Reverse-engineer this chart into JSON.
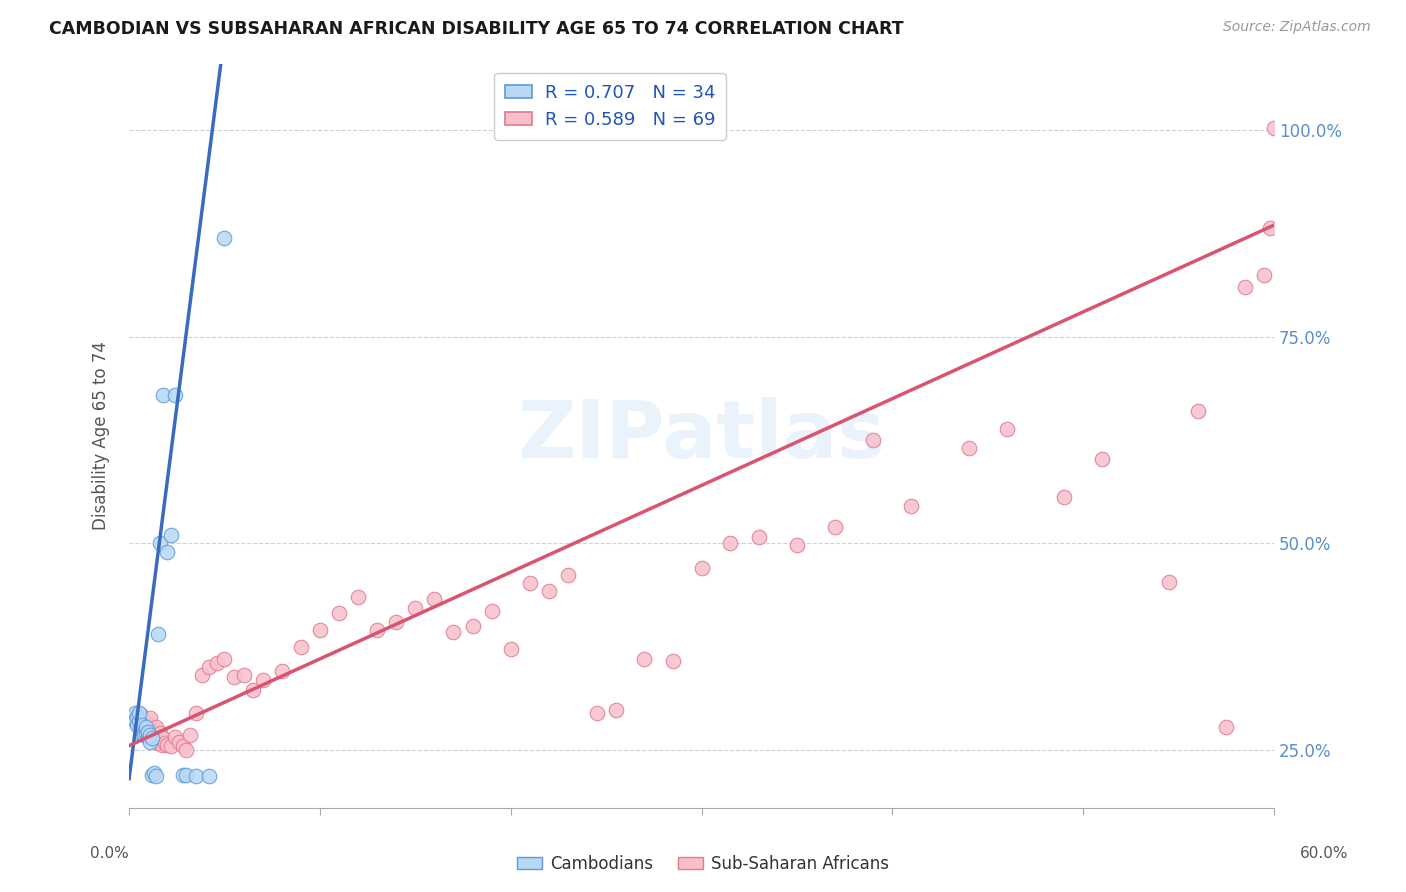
{
  "title": "CAMBODIAN VS SUBSAHARAN AFRICAN DISABILITY AGE 65 TO 74 CORRELATION CHART",
  "source": "Source: ZipAtlas.com",
  "ylabel": "Disability Age 65 to 74",
  "legend_label1": "Cambodians",
  "legend_label2": "Sub-Saharan Africans",
  "R1": "0.707",
  "N1": "34",
  "R2": "0.589",
  "N2": "69",
  "color_cambodian_fill": "#b8d8f5",
  "color_cambodian_edge": "#5b9bd5",
  "color_subsaharan_fill": "#f9c0cc",
  "color_subsaharan_edge": "#e07a90",
  "color_line_cambodian": "#3a6bbf",
  "color_line_subsaharan": "#d9546e",
  "color_ytick_labels": "#5b8fcc",
  "xlim": [
    0.0,
    0.6
  ],
  "ylim": [
    0.18,
    1.08
  ],
  "ytick_positions": [
    0.25,
    0.5,
    0.75,
    1.0
  ],
  "ytick_labels": [
    "25.0%",
    "50.0%",
    "75.0%",
    "100.0%"
  ],
  "xtick_positions": [
    0.0,
    0.1,
    0.2,
    0.3,
    0.4,
    0.5,
    0.6
  ],
  "cam_line_x0": 0.0,
  "cam_line_y0": 0.215,
  "cam_line_slope": 18.0,
  "cam_line_solid_end_x": 0.048,
  "sub_line_x0": 0.0,
  "sub_line_y0": 0.255,
  "sub_line_slope": 1.05,
  "cambodian_x": [
    0.002,
    0.003,
    0.003,
    0.004,
    0.004,
    0.005,
    0.005,
    0.006,
    0.006,
    0.007,
    0.007,
    0.008,
    0.008,
    0.009,
    0.009,
    0.01,
    0.01,
    0.011,
    0.011,
    0.012,
    0.012,
    0.013,
    0.014,
    0.015,
    0.016,
    0.018,
    0.02,
    0.022,
    0.024,
    0.028,
    0.03,
    0.035,
    0.042,
    0.05
  ],
  "cambodian_y": [
    0.29,
    0.295,
    0.285,
    0.28,
    0.29,
    0.285,
    0.295,
    0.278,
    0.27,
    0.274,
    0.28,
    0.272,
    0.268,
    0.27,
    0.278,
    0.265,
    0.272,
    0.26,
    0.268,
    0.264,
    0.22,
    0.222,
    0.218,
    0.39,
    0.5,
    0.68,
    0.49,
    0.51,
    0.68,
    0.22,
    0.22,
    0.218,
    0.218,
    0.87
  ],
  "subsaharan_x": [
    0.005,
    0.006,
    0.007,
    0.008,
    0.009,
    0.01,
    0.011,
    0.012,
    0.013,
    0.014,
    0.015,
    0.016,
    0.017,
    0.018,
    0.019,
    0.02,
    0.022,
    0.024,
    0.026,
    0.028,
    0.03,
    0.032,
    0.035,
    0.038,
    0.042,
    0.046,
    0.05,
    0.055,
    0.06,
    0.065,
    0.07,
    0.08,
    0.09,
    0.1,
    0.11,
    0.12,
    0.13,
    0.14,
    0.15,
    0.16,
    0.17,
    0.18,
    0.19,
    0.2,
    0.21,
    0.22,
    0.23,
    0.245,
    0.255,
    0.27,
    0.285,
    0.3,
    0.315,
    0.33,
    0.35,
    0.37,
    0.39,
    0.41,
    0.44,
    0.46,
    0.49,
    0.51,
    0.545,
    0.56,
    0.575,
    0.585,
    0.595,
    0.598,
    0.6
  ],
  "subsaharan_y": [
    0.285,
    0.292,
    0.278,
    0.286,
    0.272,
    0.28,
    0.288,
    0.272,
    0.265,
    0.278,
    0.258,
    0.27,
    0.256,
    0.264,
    0.258,
    0.256,
    0.254,
    0.265,
    0.26,
    0.255,
    0.25,
    0.268,
    0.295,
    0.34,
    0.35,
    0.355,
    0.36,
    0.338,
    0.34,
    0.322,
    0.335,
    0.345,
    0.375,
    0.395,
    0.415,
    0.435,
    0.395,
    0.405,
    0.422,
    0.432,
    0.392,
    0.4,
    0.418,
    0.372,
    0.452,
    0.442,
    0.462,
    0.295,
    0.298,
    0.36,
    0.358,
    0.47,
    0.5,
    0.508,
    0.498,
    0.52,
    0.625,
    0.545,
    0.615,
    0.638,
    0.556,
    0.602,
    0.453,
    0.66,
    0.278,
    0.81,
    0.825,
    0.882,
    1.003
  ]
}
